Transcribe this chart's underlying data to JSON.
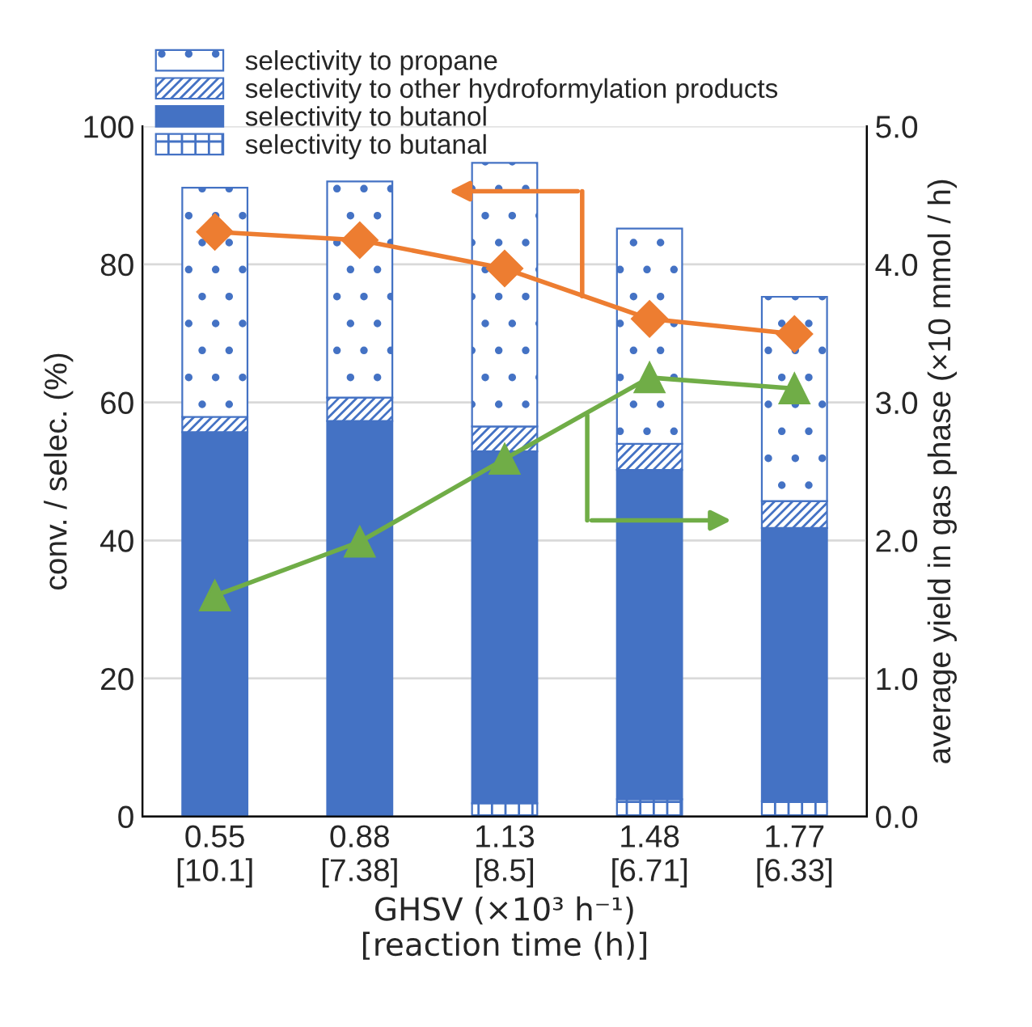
{
  "chart_data": {
    "type": "bar",
    "stacked": true,
    "categories": [
      "0.55\n[10.1]",
      "0.88\n[7.38]",
      "1.13\n[8.5]",
      "1.48\n[6.71]",
      "1.77\n[6.33]"
    ],
    "series": [
      {
        "name": "selectivity to butanal",
        "color": "#4472c4",
        "values": [
          0,
          0,
          1.9,
          2.5,
          2.2
        ]
      },
      {
        "name": "selectivity to butanol",
        "color": "#4472c4",
        "values": [
          55.7,
          57.3,
          51.0,
          47.7,
          39.6
        ]
      },
      {
        "name": "selectivity to other hydroformylation products",
        "color": "#4472c4",
        "values": [
          2.2,
          3.4,
          3.6,
          3.8,
          3.9
        ]
      },
      {
        "name": "selectivity to propane",
        "color": "#4472c4",
        "values": [
          33.2,
          31.3,
          38.2,
          31.2,
          29.6
        ]
      },
      {
        "type": "line",
        "axis": "y",
        "color": "#ed7d31",
        "marker": "diamond",
        "values": [
          84.7,
          83.5,
          79.4,
          72.1,
          69.9
        ]
      },
      {
        "type": "line",
        "axis": "y2",
        "color": "#70ad47",
        "marker": "triangle",
        "values": [
          1.6,
          1.99,
          2.59,
          3.18,
          3.1
        ]
      }
    ],
    "xlabel": "GHSV (×10³ h⁻¹)\n[reaction time (h)]",
    "ylabel": "conv. / selec. (%)",
    "y2label": "average yield in gas phase (×10 mmol / h)",
    "ylim": [
      0,
      100
    ],
    "yticks": [
      0,
      20,
      40,
      60,
      80,
      100
    ],
    "y2lim": [
      0,
      5
    ],
    "y2ticks": [
      {
        "value": 0,
        "label": "0.0"
      },
      {
        "value": 1,
        "label": "1.0"
      },
      {
        "value": 2,
        "label": "2.0"
      },
      {
        "value": 3,
        "label": "3.0"
      },
      {
        "value": 4,
        "label": "4.0"
      },
      {
        "value": 5,
        "label": "5.0"
      }
    ],
    "grid": "y",
    "legend": "top left"
  }
}
